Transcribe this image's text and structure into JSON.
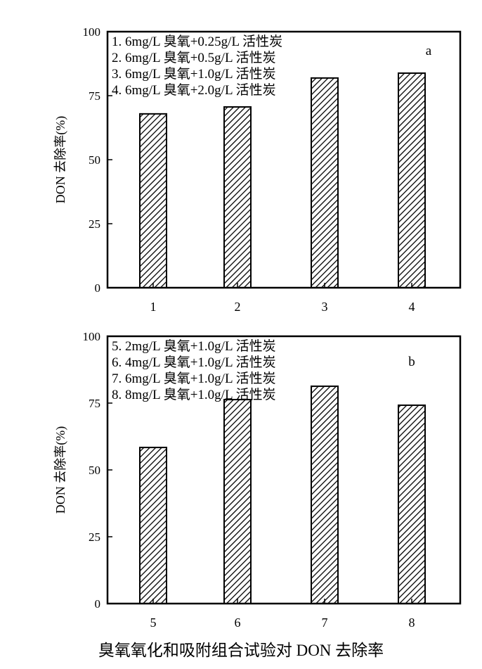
{
  "chart_data": [
    {
      "type": "bar",
      "panel_label": "a",
      "categories": [
        "1",
        "2",
        "3",
        "4"
      ],
      "values": [
        67.9,
        70.6,
        81.9,
        83.8
      ],
      "ylabel": "DON 去除率(%)",
      "xlabel": "",
      "ylim": [
        0,
        100
      ],
      "yticks": [
        0,
        25,
        50,
        75,
        100
      ],
      "legend_lines": [
        "1. 6mg/L 臭氧+0.25g/L 活性炭",
        "2. 6mg/L 臭氧+0.5g/L 活性炭",
        "3. 6mg/L 臭氧+1.0g/L 活性炭",
        "4. 6mg/L 臭氧+2.0g/L 活性炭"
      ],
      "legend_placement": "top-left",
      "bar_fill": "diagonal hatch",
      "grid": false
    },
    {
      "type": "bar",
      "panel_label": "b",
      "categories": [
        "5",
        "6",
        "7",
        "8"
      ],
      "values": [
        58.4,
        76.3,
        81.3,
        74.2
      ],
      "ylabel": "DON 去除率(%)",
      "xlabel": "",
      "ylim": [
        0,
        100
      ],
      "yticks": [
        0,
        25,
        50,
        75,
        100
      ],
      "legend_lines": [
        "5. 2mg/L 臭氧+1.0g/L 活性炭",
        "6. 4mg/L 臭氧+1.0g/L 活性炭",
        "7. 6mg/L 臭氧+1.0g/L 活性炭",
        "8. 8mg/L 臭氧+1.0g/L 活性炭"
      ],
      "legend_placement": "top-left",
      "bar_fill": "diagonal hatch",
      "grid": false
    }
  ],
  "caption": "臭氧氧化和吸附组合试验对 DON 去除率"
}
